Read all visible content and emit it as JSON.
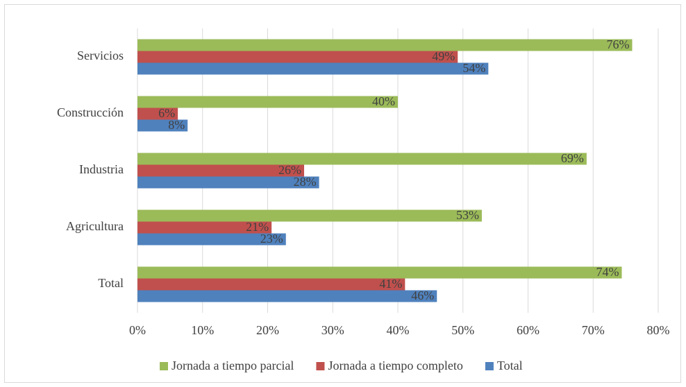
{
  "chart_data": {
    "type": "hbar",
    "categories": [
      "Servicios",
      "Construcción",
      "Industria",
      "Agricultura",
      "Total"
    ],
    "series": [
      {
        "name": "Jornada a tiempo parcial",
        "color": "#9bbb59",
        "values": [
          76.0,
          40.0,
          69.0,
          52.9,
          74.4
        ],
        "value_labels": [
          "76%",
          "40%",
          "69%",
          "53%",
          "74%"
        ]
      },
      {
        "name": "Jornada a tiempo completo",
        "color": "#c0504d",
        "values": [
          49.2,
          6.2,
          25.6,
          20.6,
          41.1
        ],
        "value_labels": [
          "49%",
          "6%",
          "26%",
          "21%",
          "41%"
        ]
      },
      {
        "name": "Total",
        "color": "#4f81bd",
        "values": [
          53.9,
          7.7,
          27.9,
          22.8,
          46.0
        ],
        "value_labels": [
          "54%",
          "8%",
          "28%",
          "23%",
          "46%"
        ]
      }
    ],
    "xlim": [
      0,
      80
    ],
    "xticks": [
      {
        "value": 0,
        "label": "0%"
      },
      {
        "value": 10,
        "label": "10%"
      },
      {
        "value": 20,
        "label": "20%"
      },
      {
        "value": 30,
        "label": "30%"
      },
      {
        "value": 40,
        "label": "40%"
      },
      {
        "value": 50,
        "label": "50%"
      },
      {
        "value": 60,
        "label": "60%"
      },
      {
        "value": 70,
        "label": "70%"
      },
      {
        "value": 80,
        "label": "80%"
      }
    ],
    "grid": true,
    "legend": "bottom"
  }
}
